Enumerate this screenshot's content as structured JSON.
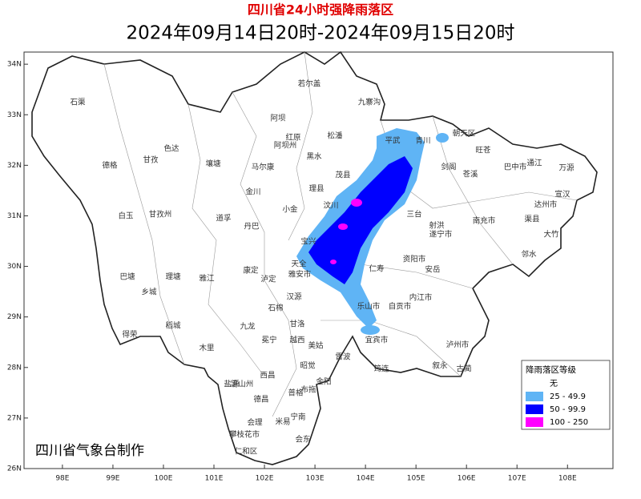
{
  "header": {
    "title": "四川省24小时强降雨落区",
    "subtitle": "2024年09月14日20时-2024年09月15日20时"
  },
  "map": {
    "lon_range": [
      97.24,
      108.9
    ],
    "lat_range": [
      26,
      34.24
    ],
    "lat_ticks": [
      {
        "value": 34,
        "label": "34N"
      },
      {
        "value": 33,
        "label": "33N"
      },
      {
        "value": 32,
        "label": "32N"
      },
      {
        "value": 31,
        "label": "31N"
      },
      {
        "value": 30,
        "label": "30N"
      },
      {
        "value": 29,
        "label": "29N"
      },
      {
        "value": 28,
        "label": "28N"
      },
      {
        "value": 27,
        "label": "27N"
      },
      {
        "value": 26,
        "label": "26N"
      }
    ],
    "lon_ticks": [
      {
        "value": 98,
        "label": "98E"
      },
      {
        "value": 99,
        "label": "99E"
      },
      {
        "value": 100,
        "label": "100E"
      },
      {
        "value": 101,
        "label": "101E"
      },
      {
        "value": 102,
        "label": "102E"
      },
      {
        "value": 103,
        "label": "103E"
      },
      {
        "value": 104,
        "label": "104E"
      },
      {
        "value": 105,
        "label": "105E"
      },
      {
        "value": 106,
        "label": "106E"
      },
      {
        "value": 107,
        "label": "107E"
      },
      {
        "value": 108,
        "label": "108E"
      }
    ],
    "places": [
      "石渠",
      "色达",
      "德格",
      "甘孜",
      "白玉",
      "甘孜州",
      "道孚",
      "丹巴",
      "康定",
      "雅江",
      "理塘",
      "巴塘",
      "乡城",
      "稻城",
      "得荣",
      "木里",
      "九龙",
      "若尔盖",
      "九寨沟",
      "阿坝",
      "红原",
      "松潘",
      "阿坝州",
      "马尔康",
      "壤塘",
      "黑水",
      "金川",
      "理县",
      "小金",
      "茂县",
      "汶川",
      "平武",
      "青川",
      "旺苍",
      "朝天区",
      "剑阁",
      "苍溪",
      "巴中市",
      "通江",
      "万源",
      "宣汉",
      "达州市",
      "渠县",
      "大竹",
      "邻水",
      "南充市",
      "射洪",
      "三台",
      "遂宁市",
      "乐山市",
      "雅安市",
      "仁寿",
      "资阳市",
      "内江市",
      "自贡市",
      "宜宾市",
      "泸州市",
      "古蔺",
      "叙永",
      "筠连",
      "西昌",
      "凉山州",
      "会理",
      "德昌",
      "盐源",
      "冕宁",
      "越西",
      "石棉",
      "汉源",
      "甘洛",
      "美姑",
      "昭觉",
      "布拖",
      "普格",
      "宁南",
      "会东",
      "米易",
      "攀枝花市",
      "仁和区",
      "雷波",
      "金阳",
      "泸定",
      "天全",
      "宝兴",
      "安岳"
    ]
  },
  "legend": {
    "title": "降雨落区等级",
    "items": [
      {
        "label": "无",
        "color": "#ffffff"
      },
      {
        "label": "25 - 49.9",
        "color": "#5fb4f5"
      },
      {
        "label": "50 - 99.9",
        "color": "#0000ff"
      },
      {
        "label": "100 - 250",
        "color": "#ff00ff"
      }
    ]
  },
  "footer": "四川省气象台制作"
}
